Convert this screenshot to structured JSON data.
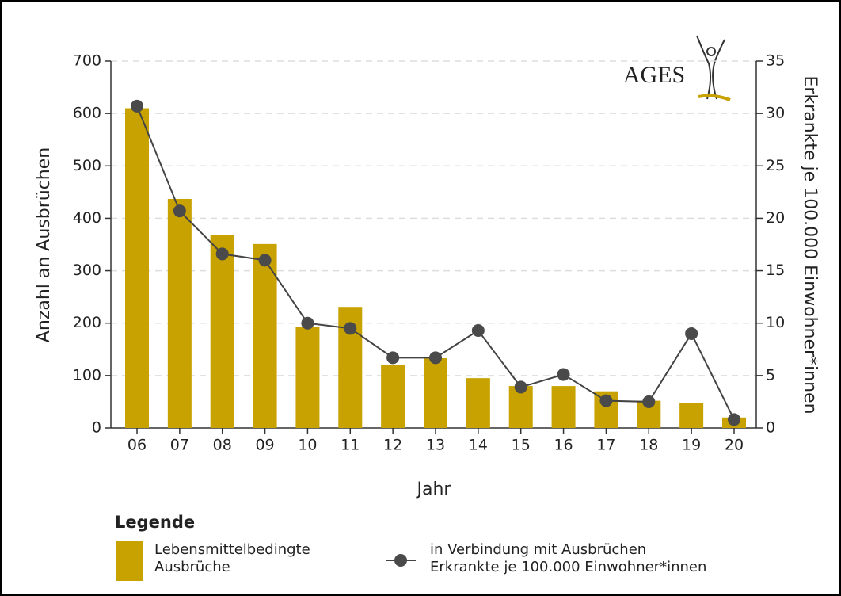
{
  "chart_data": {
    "type": "bar_line",
    "logo": "AGES",
    "xlabel": "Jahr",
    "ylabel": "Anzahl an Ausbrüchen",
    "y2label": "Erkrankte je 100.000 Einwohner*innen",
    "legend_title": "Legende",
    "categories": [
      "06",
      "07",
      "08",
      "09",
      "10",
      "11",
      "12",
      "13",
      "14",
      "15",
      "16",
      "17",
      "18",
      "19",
      "20"
    ],
    "series": [
      {
        "name": "Lebensmittelbedingte\nAusbrüche",
        "color": "#c8a200",
        "type": "bar",
        "values": [
          610,
          437,
          368,
          351,
          192,
          231,
          121,
          133,
          95,
          80,
          80,
          70,
          52,
          47,
          20
        ]
      },
      {
        "name": "in Verbindung mit Ausbrüchen\nErkrankte je 100.000 Einwohner*innen",
        "color": "#444444",
        "type": "line",
        "axis": "y2",
        "values": [
          30.7,
          20.7,
          16.6,
          16.0,
          10.0,
          9.5,
          6.7,
          6.7,
          9.3,
          3.9,
          5.1,
          2.6,
          2.5,
          9.0,
          0.8
        ]
      }
    ],
    "ylim": [
      0,
      700
    ],
    "yticks": [
      0,
      100,
      200,
      300,
      400,
      500,
      600,
      700
    ],
    "y2lim": [
      0,
      35
    ],
    "y2ticks": [
      0,
      5,
      10,
      15,
      20,
      25,
      30,
      35
    ],
    "grid": true
  }
}
